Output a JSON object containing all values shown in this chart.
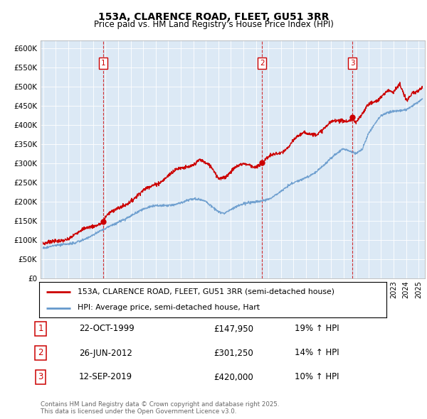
{
  "title": "153A, CLARENCE ROAD, FLEET, GU51 3RR",
  "subtitle": "Price paid vs. HM Land Registry's House Price Index (HPI)",
  "ylabel_ticks": [
    "£0",
    "£50K",
    "£100K",
    "£150K",
    "£200K",
    "£250K",
    "£300K",
    "£350K",
    "£400K",
    "£450K",
    "£500K",
    "£550K",
    "£600K"
  ],
  "ylim": [
    0,
    620000
  ],
  "xlim_start": 1994.8,
  "xlim_end": 2025.5,
  "sale_color": "#cc0000",
  "hpi_color": "#6699cc",
  "chart_bg": "#dce9f5",
  "vline_color": "#cc0000",
  "legend_sale_label": "153A, CLARENCE ROAD, FLEET, GU51 3RR (semi-detached house)",
  "legend_hpi_label": "HPI: Average price, semi-detached house, Hart",
  "transactions": [
    {
      "num": 1,
      "date": "22-OCT-1999",
      "price": 147950,
      "pct": "19%",
      "dir": "↑",
      "year": 1999.81
    },
    {
      "num": 2,
      "date": "26-JUN-2012",
      "price": 301250,
      "pct": "14%",
      "dir": "↑",
      "year": 2012.49
    },
    {
      "num": 3,
      "date": "12-SEP-2019",
      "price": 420000,
      "pct": "10%",
      "dir": "↑",
      "year": 2019.7
    }
  ],
  "footer": "Contains HM Land Registry data © Crown copyright and database right 2025.\nThis data is licensed under the Open Government Licence v3.0.",
  "background_color": "#ffffff",
  "grid_color": "#ffffff"
}
